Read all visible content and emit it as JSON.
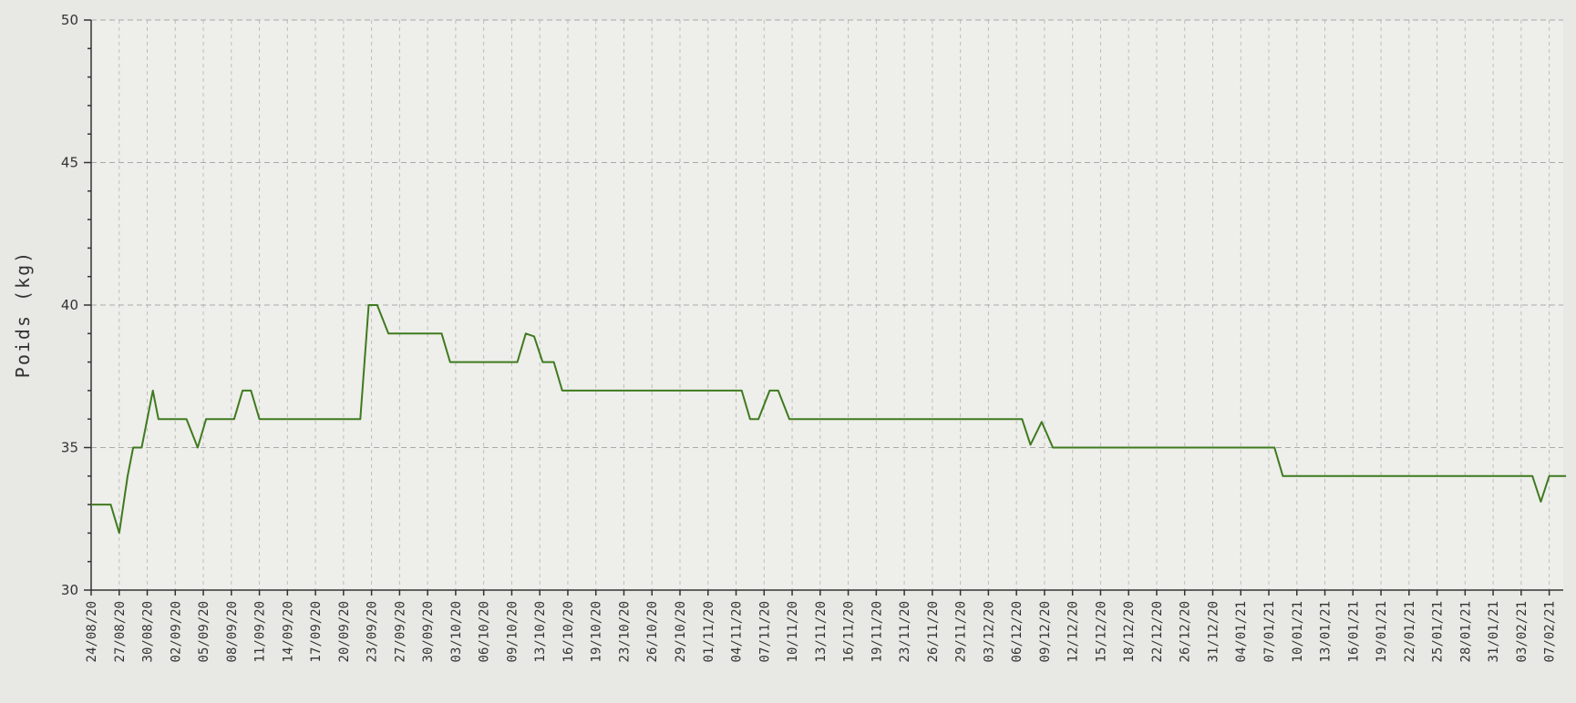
{
  "chart_data": {
    "type": "line",
    "xlabel": "",
    "ylabel": "Poids (kg)",
    "ylim": [
      30,
      50
    ],
    "yticks": [
      30,
      35,
      40,
      45,
      50
    ],
    "grid": true,
    "xticks": [
      "24/08/20",
      "27/08/20",
      "30/08/20",
      "02/09/20",
      "05/09/20",
      "08/09/20",
      "11/09/20",
      "14/09/20",
      "17/09/20",
      "20/09/20",
      "23/09/20",
      "27/09/20",
      "30/09/20",
      "03/10/20",
      "06/10/20",
      "09/10/20",
      "13/10/20",
      "16/10/20",
      "19/10/20",
      "23/10/20",
      "26/10/20",
      "29/10/20",
      "01/11/20",
      "04/11/20",
      "07/11/20",
      "10/11/20",
      "13/11/20",
      "16/11/20",
      "19/11/20",
      "23/11/20",
      "26/11/20",
      "29/11/20",
      "03/12/20",
      "06/12/20",
      "09/12/20",
      "12/12/20",
      "15/12/20",
      "18/12/20",
      "22/12/20",
      "26/12/20",
      "31/12/20",
      "04/01/21",
      "07/01/21",
      "10/01/21",
      "13/01/21",
      "16/01/21",
      "19/01/21",
      "22/01/21",
      "25/01/21",
      "28/01/21",
      "31/01/21",
      "03/02/21",
      "07/02/21"
    ],
    "series": [
      {
        "color": "#3f7a1f",
        "points": [
          [
            0,
            33
          ],
          [
            0.7,
            33
          ],
          [
            1,
            32
          ],
          [
            1.3,
            34
          ],
          [
            1.5,
            35
          ],
          [
            1.8,
            35
          ],
          [
            2.2,
            37
          ],
          [
            2.4,
            36
          ],
          [
            3.4,
            36
          ],
          [
            3.8,
            35
          ],
          [
            4.1,
            36
          ],
          [
            5.1,
            36
          ],
          [
            5.4,
            37
          ],
          [
            5.7,
            37
          ],
          [
            6,
            36
          ],
          [
            9.6,
            36
          ],
          [
            9.9,
            40
          ],
          [
            10.2,
            40
          ],
          [
            10.6,
            39
          ],
          [
            12.5,
            39
          ],
          [
            12.8,
            38
          ],
          [
            15.2,
            38
          ],
          [
            15.5,
            39
          ],
          [
            15.8,
            38.9
          ],
          [
            16.1,
            38
          ],
          [
            16.5,
            38
          ],
          [
            16.8,
            37
          ],
          [
            23.2,
            37
          ],
          [
            23.5,
            36
          ],
          [
            23.8,
            36
          ],
          [
            24.2,
            37
          ],
          [
            24.5,
            37
          ],
          [
            24.9,
            36
          ],
          [
            33.2,
            36
          ],
          [
            33.5,
            35.1
          ],
          [
            33.9,
            35.9
          ],
          [
            34.3,
            35
          ],
          [
            42.2,
            35
          ],
          [
            42.5,
            34
          ],
          [
            51.4,
            34
          ],
          [
            51.7,
            33.1
          ],
          [
            52.0,
            34
          ],
          [
            52.6,
            34
          ]
        ]
      }
    ]
  }
}
